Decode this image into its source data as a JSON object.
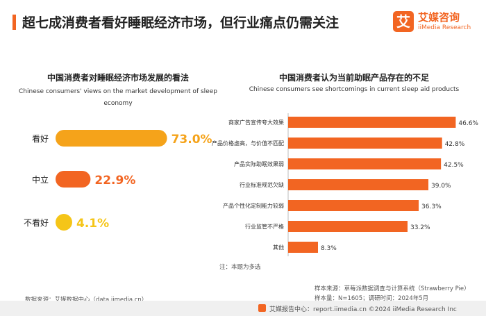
{
  "header": {
    "title": "超七成消费者看好睡眠经济市场，但行业痛点仍需关注",
    "logo_mark": "艾",
    "logo_cn": "艾媒咨询",
    "logo_en": "iiMedia Research",
    "accent_color": "#f26522"
  },
  "chart_data": [
    {
      "type": "bar",
      "title": "中国消费者对睡眠经济市场发展的看法",
      "subtitle": "Chinese consumers' views on the market development of sleep economy",
      "categories": [
        "看好",
        "中立",
        "不看好"
      ],
      "values": [
        73.0,
        22.9,
        4.1
      ],
      "value_labels": [
        "73.0%",
        "22.9%",
        "4.1%"
      ],
      "colors": [
        "#f5a31a",
        "#f26522",
        "#f5c518"
      ],
      "unit": "%"
    },
    {
      "type": "bar",
      "title": "中国消费者认为当前助眠产品存在的不足",
      "subtitle": "Chinese consumers see shortcomings in current sleep aid products",
      "categories": [
        "商家广告宣传夸大效果",
        "产品价格虚高，与价值不匹配",
        "产品实际助眠效果弱",
        "行业标准规范欠缺",
        "产品个性化定制能力较弱",
        "行业监管不严格",
        "其他"
      ],
      "values": [
        46.6,
        42.8,
        42.5,
        39.0,
        36.3,
        33.2,
        8.3
      ],
      "value_labels": [
        "46.6%",
        "42.8%",
        "42.5%",
        "39.0%",
        "36.3%",
        "33.2%",
        "8.3%"
      ],
      "color": "#f26522",
      "unit": "%",
      "note": "注：本题为多选"
    }
  ],
  "footnotes": {
    "data_source": "数据来源：艾媒数据中心（data.iimedia.cn）",
    "sample_source": "样本来源：草莓派数据调查与计算系统（Strawberry Pie）",
    "sample_size": "样本量：N=1605；调研时间：2024年5月"
  },
  "footer": {
    "text": "艾媒报告中心：report.iimedia.cn    ©2024  iiMedia Research Inc"
  }
}
